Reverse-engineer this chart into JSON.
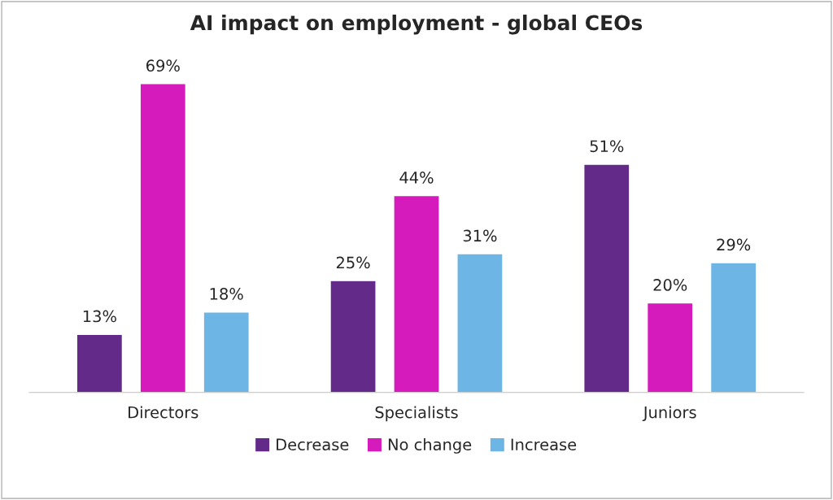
{
  "chart_data": {
    "type": "bar",
    "title": "AI impact on employment - global CEOs",
    "categories": [
      "Directors",
      "Specialists",
      "Juniors"
    ],
    "series": [
      {
        "name": "Decrease",
        "color": "#632a8a",
        "values": [
          13,
          25,
          51
        ],
        "value_labels": [
          "13%",
          "25%",
          "51%"
        ]
      },
      {
        "name": "No change",
        "color": "#d61bbd",
        "values": [
          69,
          44,
          20
        ],
        "value_labels": [
          "69%",
          "44%",
          "20%"
        ]
      },
      {
        "name": "Increase",
        "color": "#6db5e5",
        "values": [
          18,
          31,
          29
        ],
        "value_labels": [
          "18%",
          "31%",
          "29%"
        ]
      }
    ],
    "grid": false,
    "legend": "bottom"
  }
}
